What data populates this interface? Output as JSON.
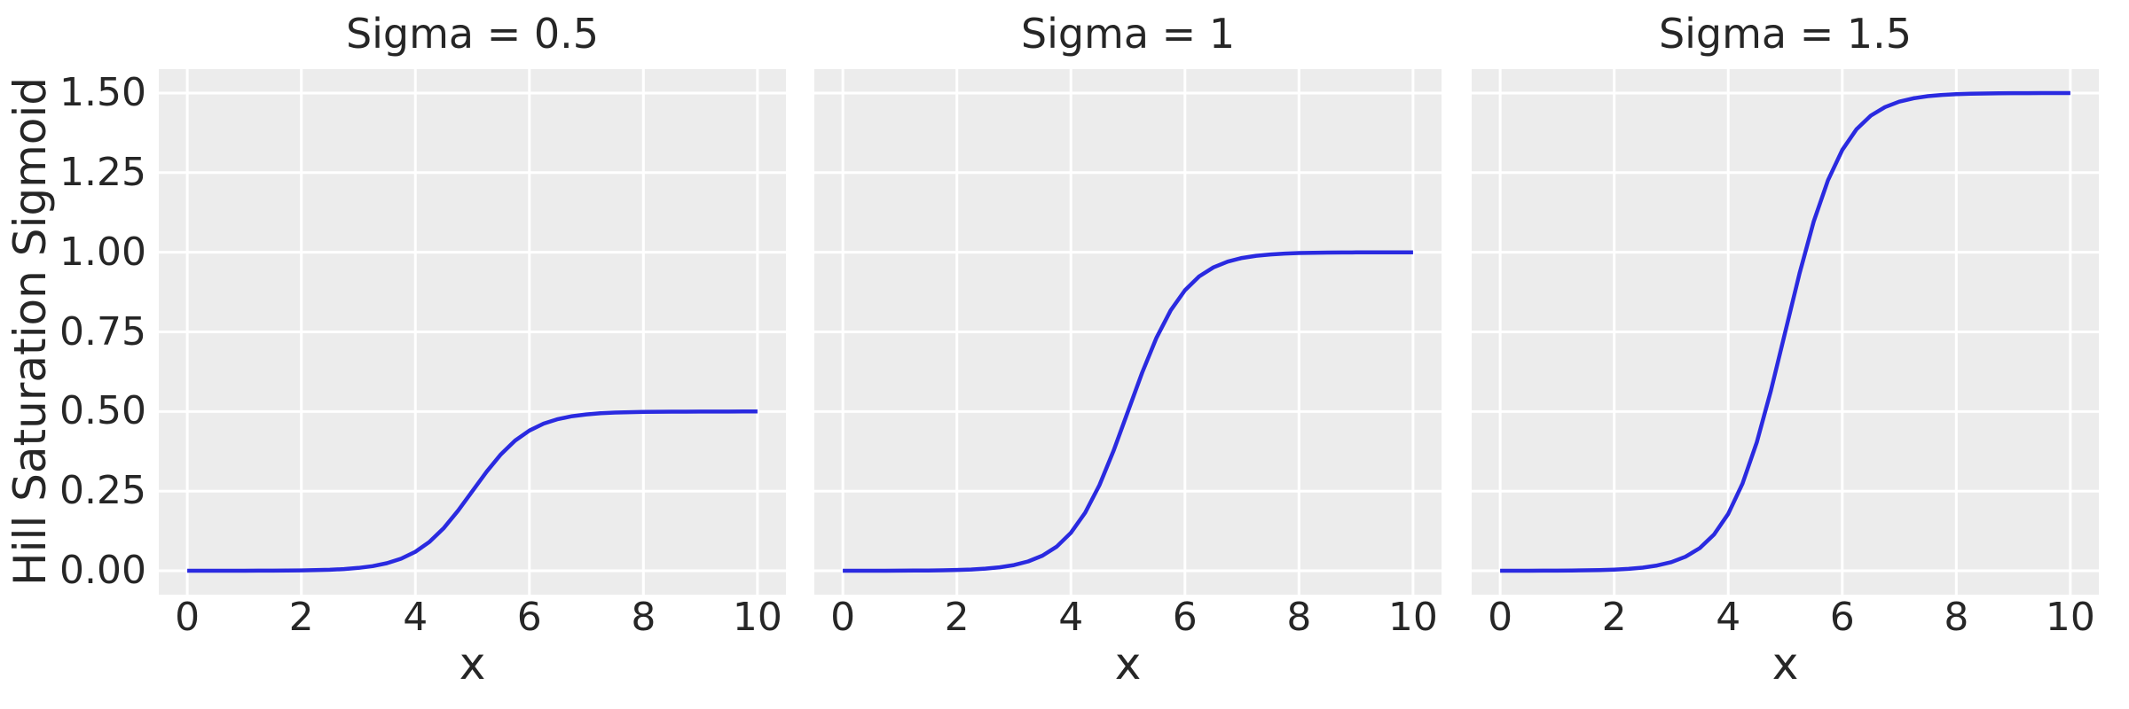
{
  "figure": {
    "background_color": "#ffffff",
    "panel_background_color": "#ececec",
    "grid_color": "#ffffff",
    "line_color": "#2a2ae0",
    "text_color": "#262626"
  },
  "chart_data": {
    "type": "line",
    "layout": "1x3 subplots, shared y-axis, grid on, no legend",
    "subplot_titles": [
      "Sigma = 0.5",
      "Sigma = 1",
      "Sigma = 1.5"
    ],
    "xlabel": "x",
    "ylabel": "Hill Saturation Sigmoid",
    "xlim": [
      -0.5,
      10.5
    ],
    "ylim": [
      -0.075,
      1.575
    ],
    "xticks": [
      0,
      2,
      4,
      6,
      8,
      10
    ],
    "xtick_labels": [
      "0",
      "2",
      "4",
      "6",
      "8",
      "10"
    ],
    "ytick_values": [
      0,
      0.25,
      0.5,
      0.75,
      1.0,
      1.25,
      1.5
    ],
    "ytick_labels": [
      "0.00",
      "0.25",
      "0.50",
      "0.75",
      "1.00",
      "1.25",
      "1.50"
    ],
    "x": [
      0,
      0.25,
      0.5,
      0.75,
      1,
      1.25,
      1.5,
      1.75,
      2,
      2.25,
      2.5,
      2.75,
      3,
      3.25,
      3.5,
      3.75,
      4,
      4.25,
      4.5,
      4.75,
      5,
      5.25,
      5.5,
      5.75,
      6,
      6.25,
      6.5,
      6.75,
      7,
      7.25,
      7.5,
      7.75,
      8,
      8.25,
      8.5,
      8.75,
      9,
      9.25,
      9.5,
      9.75,
      10
    ],
    "series": [
      {
        "name": "Sigma = 0.5",
        "sigma": 0.5,
        "values": [
          0.0,
          0.0,
          0.0001,
          0.0001,
          0.0002,
          0.0003,
          0.0005,
          0.0008,
          0.0012,
          0.002,
          0.0033,
          0.0055,
          0.009,
          0.0147,
          0.0237,
          0.0379,
          0.0596,
          0.0912,
          0.1345,
          0.1888,
          0.25,
          0.3112,
          0.3655,
          0.4088,
          0.4404,
          0.4621,
          0.4763,
          0.4853,
          0.491,
          0.4945,
          0.4967,
          0.498,
          0.4988,
          0.4993,
          0.4995,
          0.4997,
          0.4998,
          0.4999,
          0.4999,
          0.5,
          0.5
        ]
      },
      {
        "name": "Sigma = 1",
        "sigma": 1,
        "values": [
          0.0,
          0.0001,
          0.0001,
          0.0002,
          0.0003,
          0.0006,
          0.0009,
          0.0015,
          0.0025,
          0.0041,
          0.0067,
          0.011,
          0.018,
          0.0293,
          0.0474,
          0.0759,
          0.1192,
          0.1824,
          0.2689,
          0.3775,
          0.5,
          0.6225,
          0.7311,
          0.8176,
          0.8808,
          0.9241,
          0.9526,
          0.9707,
          0.982,
          0.989,
          0.9933,
          0.9959,
          0.9975,
          0.9985,
          0.9991,
          0.9994,
          0.9997,
          0.9998,
          0.9999,
          0.9999,
          1.0
        ]
      },
      {
        "name": "Sigma = 1.5",
        "sigma": 1.5,
        "values": [
          0.0001,
          0.0001,
          0.0002,
          0.0003,
          0.0005,
          0.0008,
          0.0014,
          0.0023,
          0.0037,
          0.0061,
          0.01,
          0.0165,
          0.027,
          0.044,
          0.0711,
          0.1138,
          0.1788,
          0.2736,
          0.4034,
          0.5663,
          0.75,
          0.9337,
          1.0966,
          1.2264,
          1.3212,
          1.3862,
          1.4289,
          1.456,
          1.473,
          1.4835,
          1.49,
          1.4939,
          1.4963,
          1.4978,
          1.4986,
          1.4992,
          1.4995,
          1.4997,
          1.4998,
          1.4999,
          1.4999
        ]
      }
    ]
  }
}
